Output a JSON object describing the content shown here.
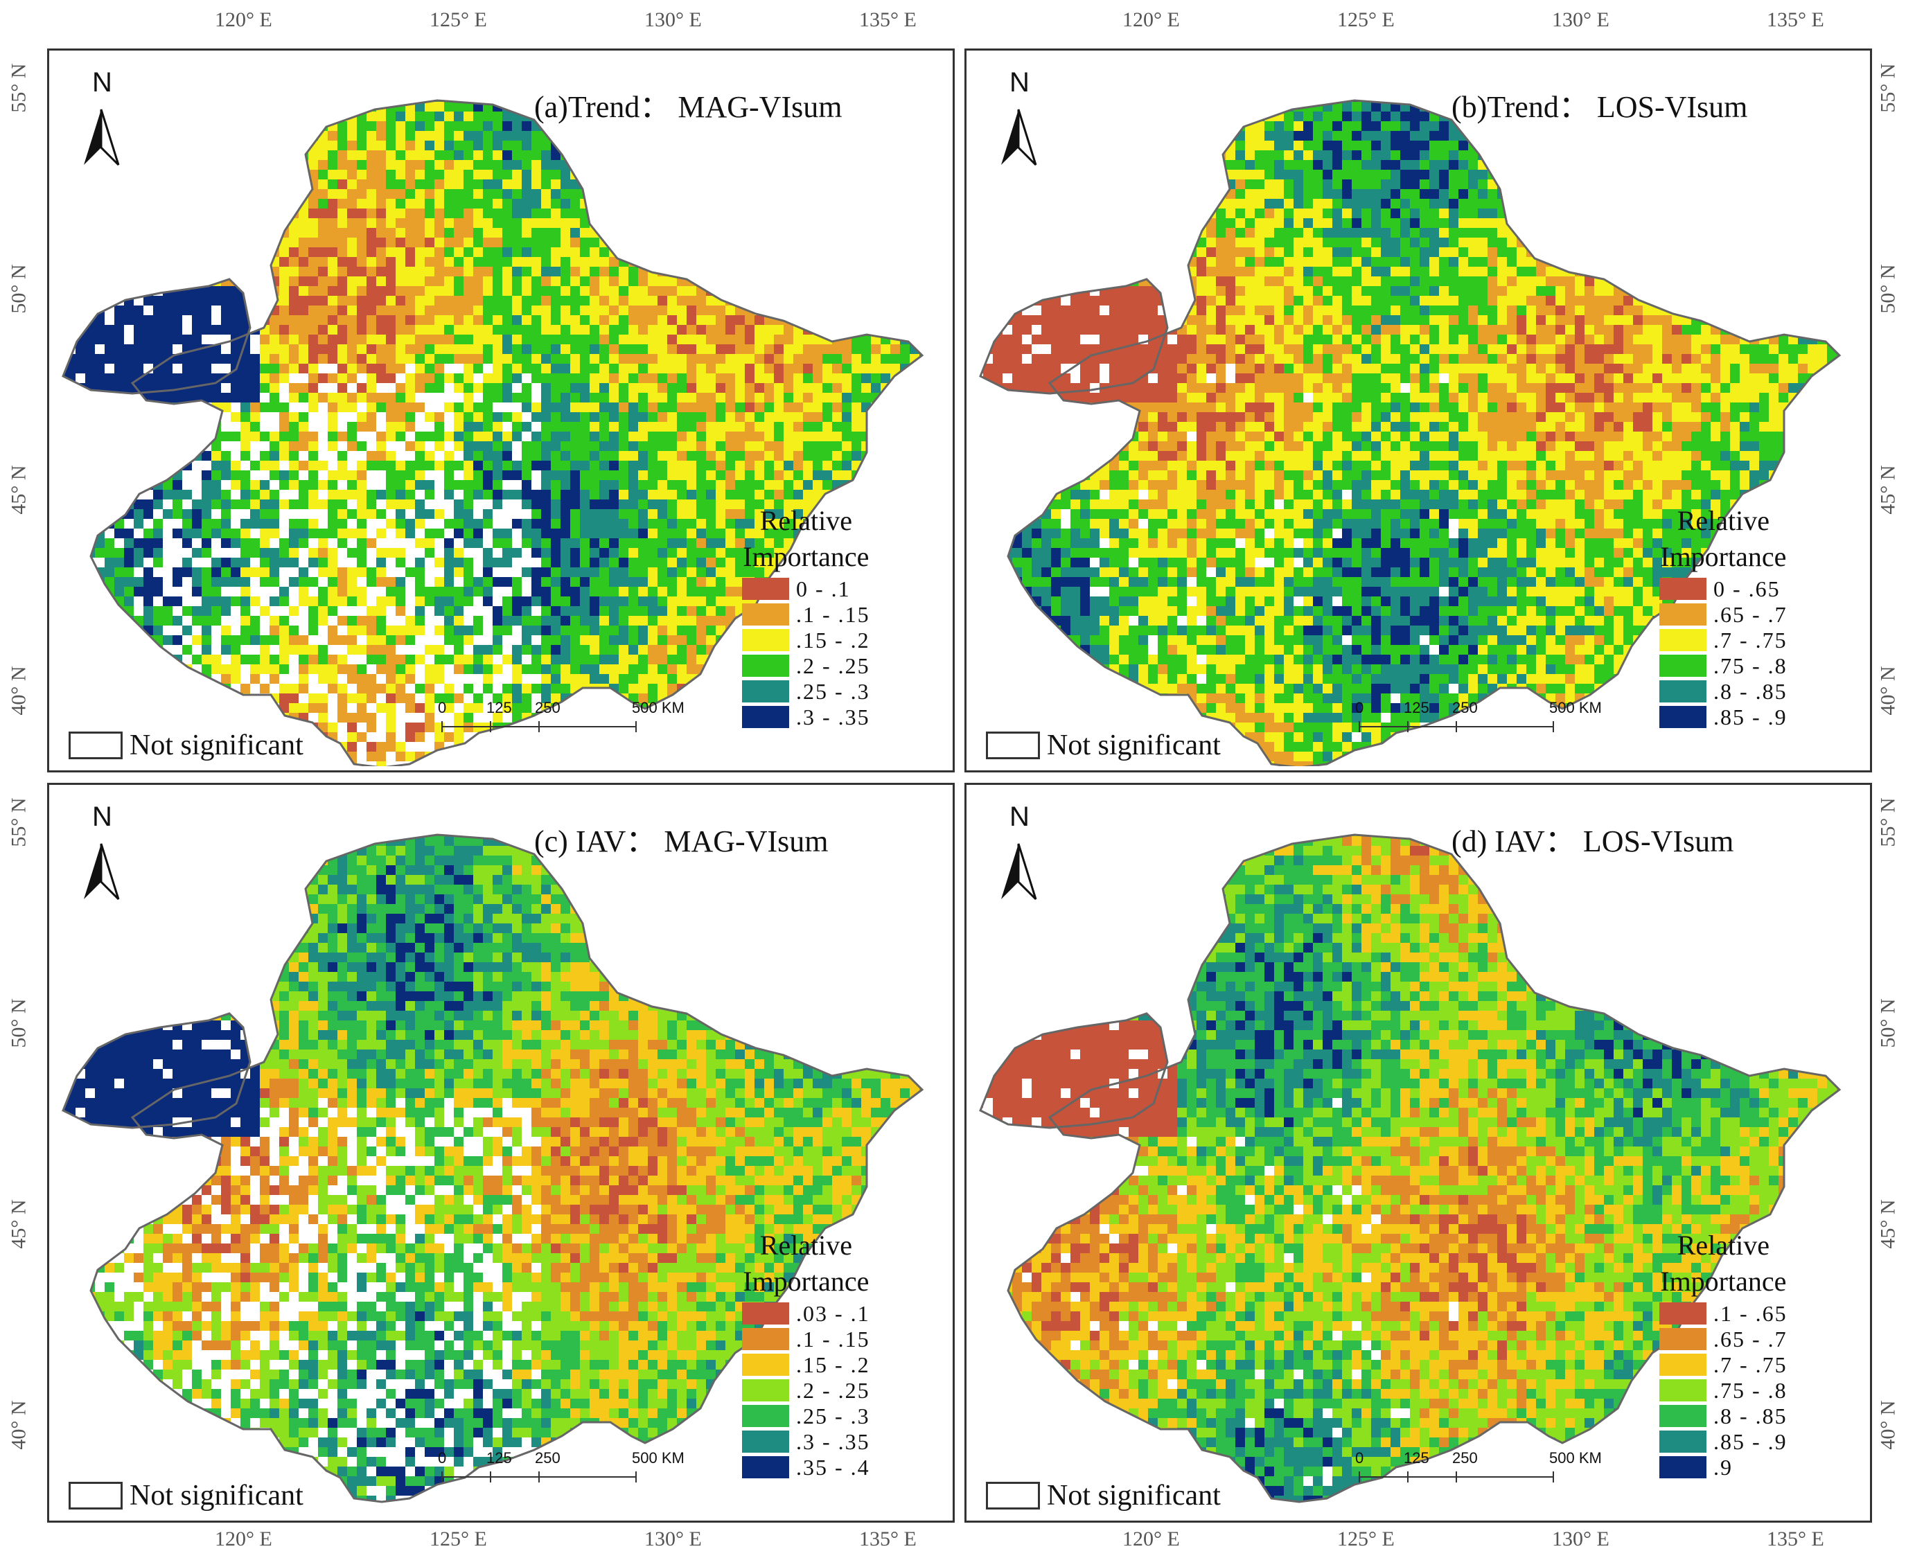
{
  "axes": {
    "top_lon": [
      "120° E",
      "125° E",
      "130° E",
      "135° E"
    ],
    "bottom_lon": [
      "120° E",
      "125° E",
      "130° E",
      "135° E"
    ],
    "left_lat_upper": [
      "55° N",
      "50° N",
      "45° N",
      "40° N"
    ],
    "left_lat_lower": [
      "55° N",
      "50° N",
      "45° N",
      "40° N"
    ],
    "right_lat_upper": [
      "55° N",
      "50° N",
      "45° N",
      "40° N"
    ],
    "right_lat_lower": [
      "55° N",
      "50° N",
      "45° N",
      "40° N"
    ]
  },
  "common": {
    "north_label": "N",
    "legend_title_1": "Relative",
    "legend_title_2": "Importance",
    "not_significant": "Not significant",
    "scale_ticks": [
      "0",
      "125",
      "250",
      "500 KM"
    ]
  },
  "panels": [
    {
      "title": "(a)Trend： MAG-VIsum",
      "legend": [
        {
          "label": "0 - .1",
          "color": "#c6533a"
        },
        {
          "label": ".1 - .15",
          "color": "#e8a02a"
        },
        {
          "label": ".15 - .2",
          "color": "#f5f01a"
        },
        {
          "label": ".2 - .25",
          "color": "#2ec81e"
        },
        {
          "label": ".25 - .3",
          "color": "#1e8c80"
        },
        {
          "label": ".3 - .35",
          "color": "#0a2a7a"
        }
      ]
    },
    {
      "title": "(b)Trend： LOS-VIsum",
      "legend": [
        {
          "label": "0 - .65",
          "color": "#c6533a"
        },
        {
          "label": ".65 - .7",
          "color": "#e8a02a"
        },
        {
          "label": ".7 - .75",
          "color": "#f5f01a"
        },
        {
          "label": ".75 - .8",
          "color": "#2ec81e"
        },
        {
          "label": ".8 - .85",
          "color": "#1e8c80"
        },
        {
          "label": ".85 - .9",
          "color": "#0a2a7a"
        }
      ]
    },
    {
      "title": "(c) IAV： MAG-VIsum",
      "legend": [
        {
          "label": ".03 - .1",
          "color": "#c6533a"
        },
        {
          "label": ".1 - .15",
          "color": "#e08a2a"
        },
        {
          "label": ".15 - .2",
          "color": "#f5c81a"
        },
        {
          "label": ".2 - .25",
          "color": "#8ce01e"
        },
        {
          "label": ".25 - .3",
          "color": "#2ebc4a"
        },
        {
          "label": ".3 - .35",
          "color": "#1e8c80"
        },
        {
          "label": ".35 - .4",
          "color": "#0a2a7a"
        }
      ]
    },
    {
      "title": "(d) IAV： LOS-VIsum",
      "legend": [
        {
          "label": ".1 - .65",
          "color": "#c6533a"
        },
        {
          "label": ".65 - .7",
          "color": "#e08a2a"
        },
        {
          "label": ".7 - .75",
          "color": "#f5c81a"
        },
        {
          "label": ".75 - .8",
          "color": "#8ce01e"
        },
        {
          "label": ".8 - .85",
          "color": "#2ebc4a"
        },
        {
          "label": ".85 - .9",
          "color": "#1e8c80"
        },
        {
          "label": ".9",
          "color": "#0a2a7a"
        }
      ]
    }
  ]
}
